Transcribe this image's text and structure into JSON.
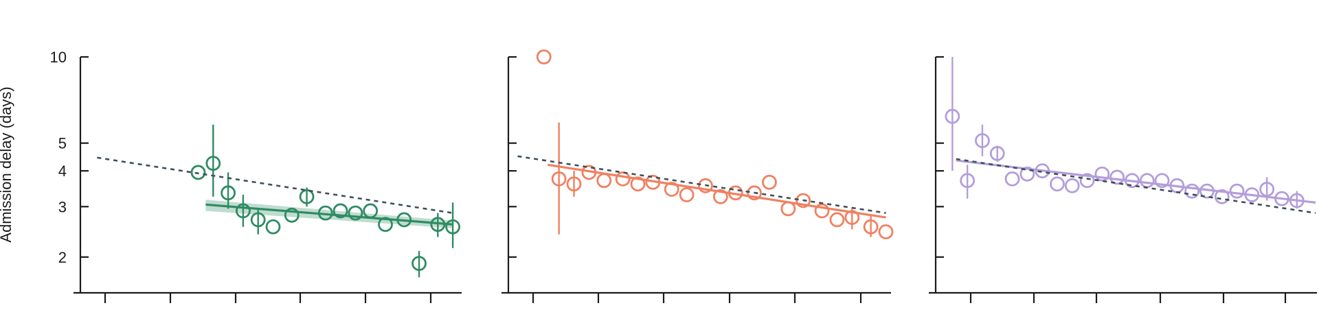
{
  "chart_data": {
    "type": "scatter",
    "ylabel": "Admission delay (days)",
    "yscale": "log",
    "ylim": [
      1.5,
      10
    ],
    "yticks": [
      2,
      3,
      4,
      5,
      10
    ],
    "ytick_labels": [
      "2",
      "3",
      "4",
      "5",
      "10"
    ],
    "xlim": [
      0,
      1
    ],
    "xticks_count": 6,
    "grid": false,
    "legend": "none",
    "panels": [
      {
        "color": "#2e8b62",
        "reference_trend": [
          [
            0.03,
            4.45
          ],
          [
            0.98,
            2.85
          ]
        ],
        "fit_line": [
          [
            0.32,
            3.05
          ],
          [
            0.98,
            2.6
          ]
        ],
        "points": [
          {
            "x": 0.3,
            "y": 3.95,
            "lo": 3.95,
            "hi": 3.95
          },
          {
            "x": 0.34,
            "y": 4.25,
            "lo": 3.25,
            "hi": 5.8
          },
          {
            "x": 0.38,
            "y": 3.35,
            "lo": 2.95,
            "hi": 3.95
          },
          {
            "x": 0.42,
            "y": 2.9,
            "lo": 2.55,
            "hi": 3.3
          },
          {
            "x": 0.46,
            "y": 2.7,
            "lo": 2.4,
            "hi": 2.95
          },
          {
            "x": 0.5,
            "y": 2.55,
            "lo": 2.55,
            "hi": 2.55
          },
          {
            "x": 0.55,
            "y": 2.8,
            "lo": 2.8,
            "hi": 2.8
          },
          {
            "x": 0.59,
            "y": 3.25,
            "lo": 3.0,
            "hi": 3.5
          },
          {
            "x": 0.64,
            "y": 2.85,
            "lo": 2.85,
            "hi": 2.85
          },
          {
            "x": 0.68,
            "y": 2.9,
            "lo": 2.9,
            "hi": 2.9
          },
          {
            "x": 0.72,
            "y": 2.85,
            "lo": 2.85,
            "hi": 2.85
          },
          {
            "x": 0.76,
            "y": 2.9,
            "lo": 2.9,
            "hi": 2.9
          },
          {
            "x": 0.8,
            "y": 2.6,
            "lo": 2.6,
            "hi": 2.6
          },
          {
            "x": 0.85,
            "y": 2.7,
            "lo": 2.7,
            "hi": 2.7
          },
          {
            "x": 0.89,
            "y": 1.9,
            "lo": 1.7,
            "hi": 2.1
          },
          {
            "x": 0.94,
            "y": 2.6,
            "lo": 2.35,
            "hi": 2.85
          },
          {
            "x": 0.98,
            "y": 2.55,
            "lo": 2.15,
            "hi": 3.1
          }
        ]
      },
      {
        "color": "#f08060",
        "reference_trend": [
          [
            0.01,
            4.5
          ],
          [
            0.99,
            2.85
          ]
        ],
        "fit_line": [
          [
            0.09,
            4.2
          ],
          [
            0.99,
            2.75
          ]
        ],
        "points": [
          {
            "x": 0.08,
            "y": 10.0,
            "lo": 10.0,
            "hi": 10.0
          },
          {
            "x": 0.12,
            "y": 3.75,
            "lo": 2.4,
            "hi": 5.9
          },
          {
            "x": 0.16,
            "y": 3.6,
            "lo": 3.25,
            "hi": 4.0
          },
          {
            "x": 0.2,
            "y": 3.95,
            "lo": 3.95,
            "hi": 3.95
          },
          {
            "x": 0.24,
            "y": 3.7,
            "lo": 3.7,
            "hi": 3.7
          },
          {
            "x": 0.29,
            "y": 3.75,
            "lo": 3.75,
            "hi": 3.75
          },
          {
            "x": 0.33,
            "y": 3.6,
            "lo": 3.6,
            "hi": 3.6
          },
          {
            "x": 0.37,
            "y": 3.65,
            "lo": 3.65,
            "hi": 3.65
          },
          {
            "x": 0.42,
            "y": 3.45,
            "lo": 3.45,
            "hi": 3.45
          },
          {
            "x": 0.46,
            "y": 3.3,
            "lo": 3.3,
            "hi": 3.3
          },
          {
            "x": 0.51,
            "y": 3.55,
            "lo": 3.55,
            "hi": 3.55
          },
          {
            "x": 0.55,
            "y": 3.25,
            "lo": 3.25,
            "hi": 3.25
          },
          {
            "x": 0.59,
            "y": 3.35,
            "lo": 3.35,
            "hi": 3.35
          },
          {
            "x": 0.64,
            "y": 3.35,
            "lo": 3.35,
            "hi": 3.35
          },
          {
            "x": 0.68,
            "y": 3.65,
            "lo": 3.65,
            "hi": 3.65
          },
          {
            "x": 0.73,
            "y": 2.95,
            "lo": 2.95,
            "hi": 2.95
          },
          {
            "x": 0.77,
            "y": 3.15,
            "lo": 3.15,
            "hi": 3.15
          },
          {
            "x": 0.82,
            "y": 2.9,
            "lo": 2.9,
            "hi": 2.9
          },
          {
            "x": 0.86,
            "y": 2.7,
            "lo": 2.7,
            "hi": 2.7
          },
          {
            "x": 0.9,
            "y": 2.75,
            "lo": 2.5,
            "hi": 2.95
          },
          {
            "x": 0.95,
            "y": 2.55,
            "lo": 2.35,
            "hi": 2.8
          },
          {
            "x": 0.99,
            "y": 2.45,
            "lo": 2.45,
            "hi": 2.45
          }
        ]
      },
      {
        "color": "#b39ddb",
        "reference_trend": [
          [
            0.04,
            4.4
          ],
          [
            1.0,
            2.85
          ]
        ],
        "fit_line": [
          [
            0.04,
            4.35
          ],
          [
            1.0,
            3.1
          ]
        ],
        "points": [
          {
            "x": 0.03,
            "y": 6.2,
            "lo": 4.0,
            "hi": 10.0
          },
          {
            "x": 0.07,
            "y": 3.7,
            "lo": 3.2,
            "hi": 4.2
          },
          {
            "x": 0.11,
            "y": 5.1,
            "lo": 4.5,
            "hi": 5.8
          },
          {
            "x": 0.15,
            "y": 4.6,
            "lo": 4.3,
            "hi": 4.9
          },
          {
            "x": 0.19,
            "y": 3.75,
            "lo": 3.75,
            "hi": 3.75
          },
          {
            "x": 0.23,
            "y": 3.9,
            "lo": 3.9,
            "hi": 3.9
          },
          {
            "x": 0.27,
            "y": 4.0,
            "lo": 4.0,
            "hi": 4.0
          },
          {
            "x": 0.31,
            "y": 3.6,
            "lo": 3.6,
            "hi": 3.6
          },
          {
            "x": 0.35,
            "y": 3.55,
            "lo": 3.55,
            "hi": 3.55
          },
          {
            "x": 0.39,
            "y": 3.7,
            "lo": 3.7,
            "hi": 3.7
          },
          {
            "x": 0.43,
            "y": 3.9,
            "lo": 3.9,
            "hi": 3.9
          },
          {
            "x": 0.47,
            "y": 3.8,
            "lo": 3.8,
            "hi": 3.8
          },
          {
            "x": 0.51,
            "y": 3.7,
            "lo": 3.7,
            "hi": 3.7
          },
          {
            "x": 0.55,
            "y": 3.7,
            "lo": 3.7,
            "hi": 3.7
          },
          {
            "x": 0.59,
            "y": 3.7,
            "lo": 3.7,
            "hi": 3.7
          },
          {
            "x": 0.63,
            "y": 3.55,
            "lo": 3.55,
            "hi": 3.55
          },
          {
            "x": 0.67,
            "y": 3.4,
            "lo": 3.4,
            "hi": 3.4
          },
          {
            "x": 0.71,
            "y": 3.4,
            "lo": 3.4,
            "hi": 3.4
          },
          {
            "x": 0.75,
            "y": 3.25,
            "lo": 3.25,
            "hi": 3.25
          },
          {
            "x": 0.79,
            "y": 3.4,
            "lo": 3.4,
            "hi": 3.4
          },
          {
            "x": 0.83,
            "y": 3.3,
            "lo": 3.3,
            "hi": 3.3
          },
          {
            "x": 0.87,
            "y": 3.45,
            "lo": 3.15,
            "hi": 3.8
          },
          {
            "x": 0.91,
            "y": 3.2,
            "lo": 3.2,
            "hi": 3.2
          },
          {
            "x": 0.95,
            "y": 3.15,
            "lo": 2.95,
            "hi": 3.4
          }
        ]
      }
    ]
  }
}
